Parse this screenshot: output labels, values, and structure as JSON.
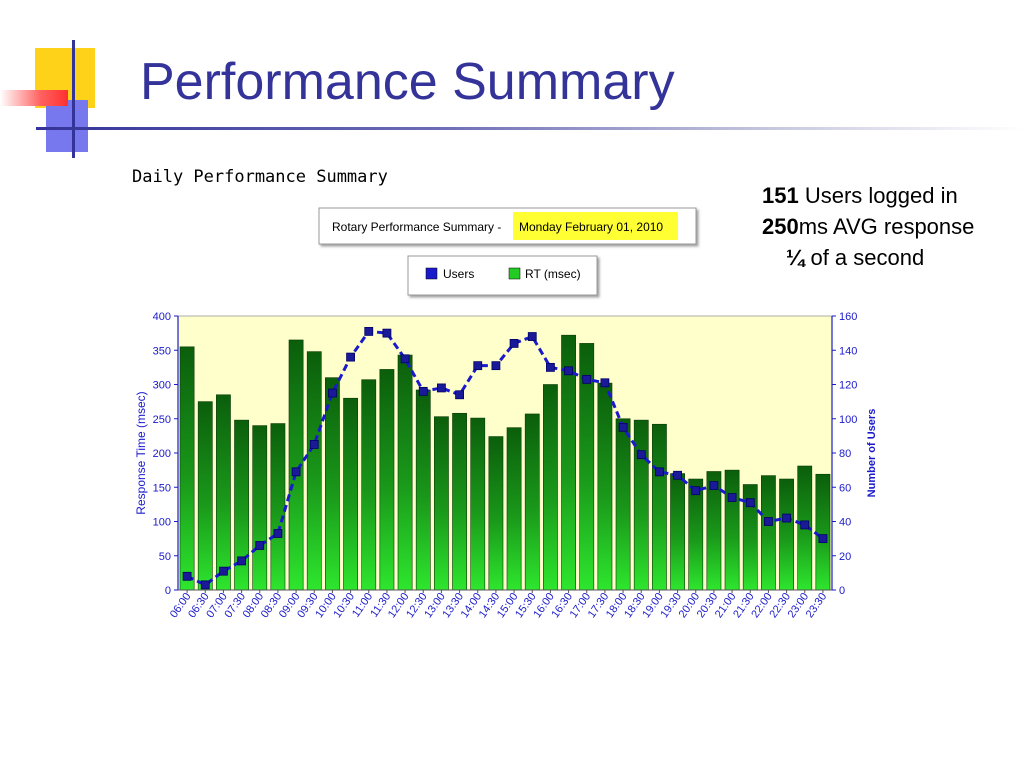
{
  "slide": {
    "title": "Performance Summary"
  },
  "chart_heading": "Daily Performance Summary",
  "stats": {
    "users_value": "151",
    "users_text": " Users logged in",
    "response_value": "250",
    "response_text": "ms AVG response",
    "fraction_value": "¼",
    "fraction_text": " of a second"
  },
  "chart_data": {
    "type": "bar",
    "title": "Rotary Performance Summary - ",
    "subtitle": "Monday February 01, 2010",
    "ylabel": "Response Time (msec)",
    "y2label": "Number of Users",
    "ylim": [
      0,
      400
    ],
    "y2lim": [
      0,
      160
    ],
    "yticks": [
      "0",
      "50",
      "100",
      "150",
      "200",
      "250",
      "300",
      "350",
      "400"
    ],
    "y2ticks": [
      "0",
      "20",
      "40",
      "60",
      "80",
      "100",
      "120",
      "140",
      "160"
    ],
    "grid": false,
    "legend_position": "top",
    "categories": [
      "06:00",
      "06:30",
      "07:00",
      "07:30",
      "08:00",
      "08:30",
      "09:00",
      "09:30",
      "10:00",
      "10:30",
      "11:00",
      "11:30",
      "12:00",
      "12:30",
      "13:00",
      "13:30",
      "14:00",
      "14:30",
      "15:00",
      "15:30",
      "16:00",
      "16:30",
      "17:00",
      "17:30",
      "18:00",
      "18:30",
      "19:00",
      "19:30",
      "20:00",
      "20:30",
      "21:00",
      "21:30",
      "22:00",
      "22:30",
      "23:00",
      "23:30"
    ],
    "series": [
      {
        "name": "RT (msec)",
        "type": "bar",
        "axis": "left",
        "color": "#22aa22",
        "values": [
          355,
          275,
          285,
          248,
          240,
          243,
          365,
          348,
          310,
          280,
          307,
          322,
          343,
          292,
          253,
          258,
          251,
          224,
          237,
          257,
          300,
          372,
          360,
          302,
          250,
          248,
          242,
          170,
          162,
          173,
          175,
          154,
          167,
          162,
          181,
          169
        ]
      },
      {
        "name": "Users",
        "type": "line",
        "axis": "right",
        "color": "#1a1acc",
        "values": [
          8,
          3,
          11,
          17,
          26,
          33,
          69,
          85,
          115,
          136,
          151,
          150,
          135,
          116,
          118,
          114,
          131,
          131,
          144,
          148,
          130,
          128,
          123,
          121,
          95,
          79,
          69,
          67,
          58,
          61,
          54,
          51,
          40,
          42,
          38,
          30
        ]
      }
    ]
  }
}
